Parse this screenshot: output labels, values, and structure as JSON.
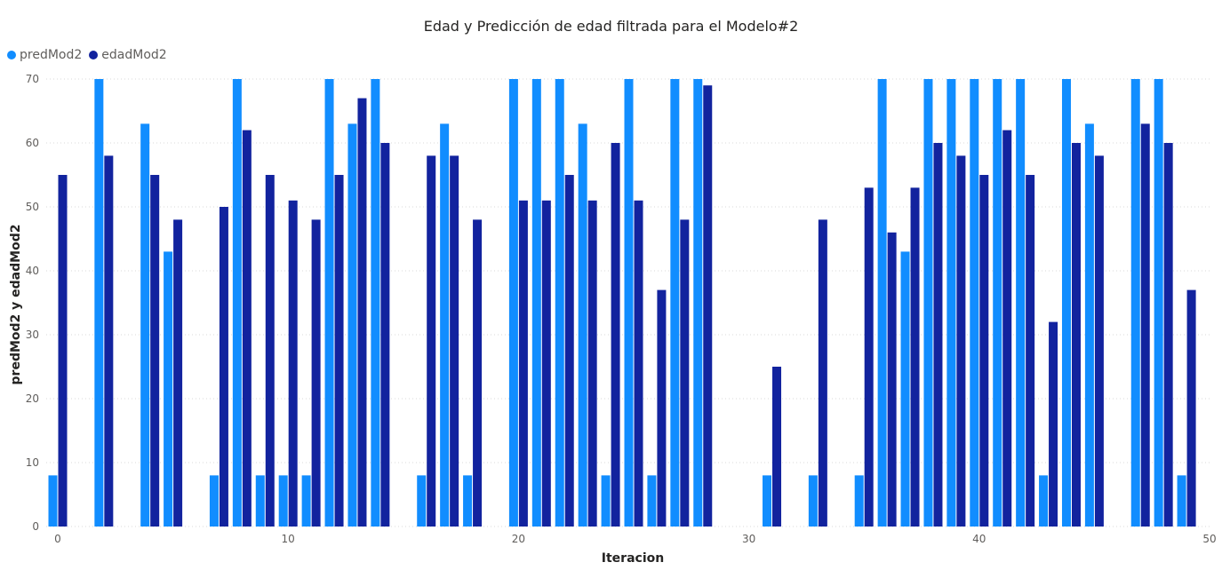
{
  "chart_data": {
    "type": "bar",
    "title": "Edad y Predicción de edad filtrada para el Modelo#2",
    "xlabel": "Iteracion",
    "ylabel": "predMod2 y edadMod2",
    "ylim": [
      0,
      70
    ],
    "xlim": [
      -0.5,
      50
    ],
    "yticks": [
      0,
      10,
      20,
      30,
      40,
      50,
      60,
      70
    ],
    "xticks": [
      0,
      10,
      20,
      30,
      40,
      50
    ],
    "grid": true,
    "legend_position": "top-left",
    "x": [
      0,
      2,
      4,
      5,
      7,
      8,
      9,
      10,
      11,
      12,
      13,
      14,
      16,
      17,
      18,
      20,
      21,
      22,
      23,
      24,
      25,
      26,
      27,
      28,
      31,
      33,
      35,
      36,
      37,
      38,
      39,
      40,
      41,
      42,
      43,
      44,
      45,
      47,
      48,
      49
    ],
    "series": [
      {
        "name": "predMod2",
        "color": "#118DFF",
        "values": [
          8,
          70,
          63,
          43,
          8,
          70,
          8,
          8,
          8,
          70,
          63,
          70,
          8,
          63,
          8,
          70,
          70,
          70,
          63,
          8,
          70,
          8,
          70,
          70,
          8,
          8,
          8,
          70,
          43,
          70,
          70,
          70,
          70,
          70,
          8,
          70,
          63,
          70,
          70,
          8
        ]
      },
      {
        "name": "edadMod2",
        "color": "#12239E",
        "values": [
          55,
          58,
          55,
          48,
          50,
          62,
          55,
          51,
          48,
          55,
          67,
          60,
          58,
          58,
          48,
          51,
          51,
          55,
          51,
          60,
          51,
          37,
          48,
          69,
          25,
          48,
          53,
          46,
          53,
          60,
          58,
          55,
          62,
          55,
          32,
          60,
          58,
          63,
          60,
          37
        ]
      }
    ]
  }
}
